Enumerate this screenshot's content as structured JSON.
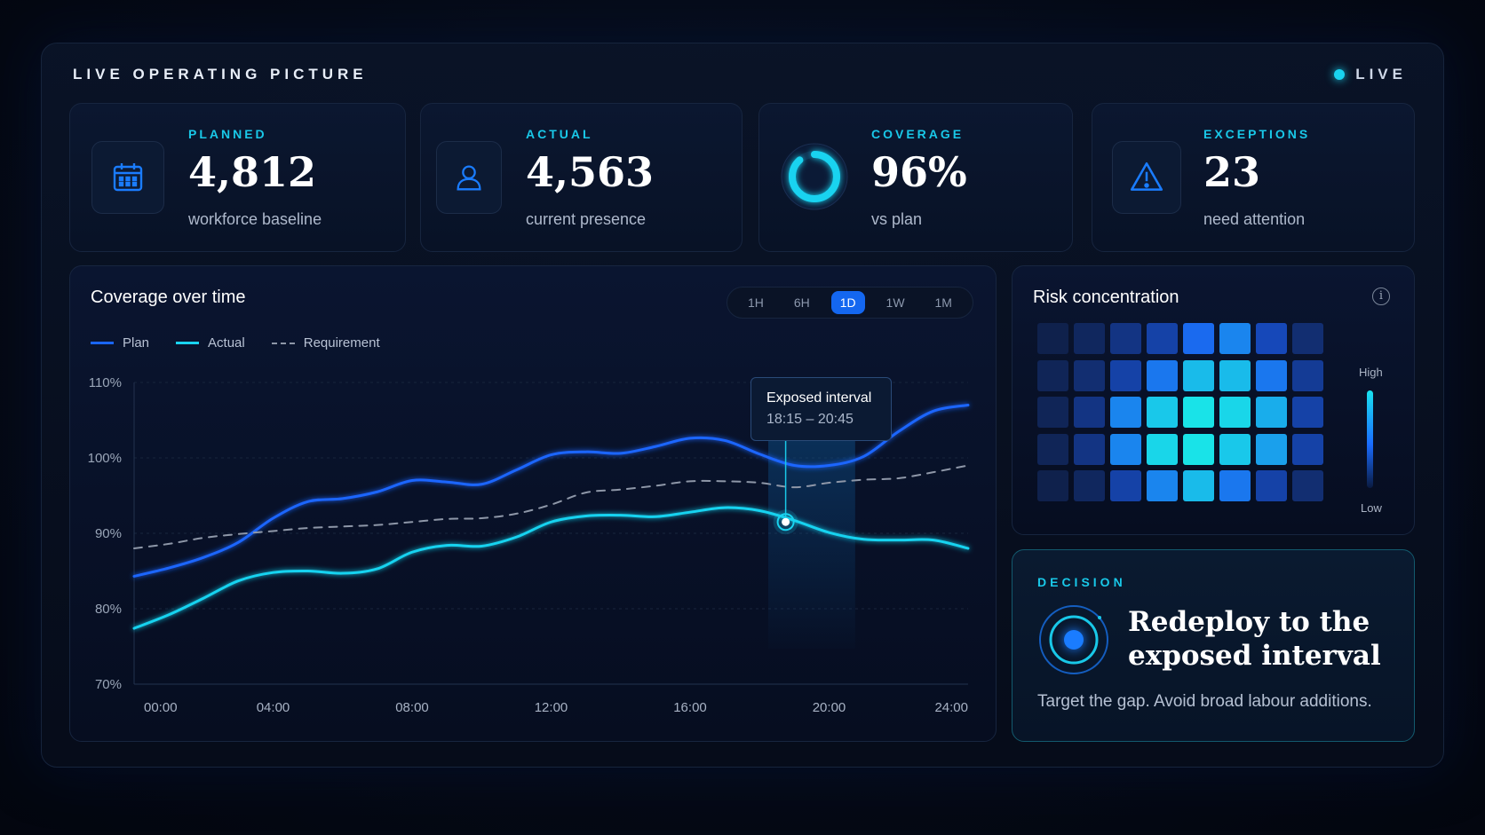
{
  "header": {
    "title": "LIVE OPERATING PICTURE",
    "live_label": "LIVE"
  },
  "colors": {
    "plan": "#1a66ff",
    "actual": "#19d3f0",
    "requirement": "#8e97a8",
    "accent": "#19c8e8",
    "active_tab": "#1467f0"
  },
  "kpis": [
    {
      "label": "PLANNED",
      "value": "4,812",
      "sub": "workforce baseline",
      "icon": "calendar-icon"
    },
    {
      "label": "ACTUAL",
      "value": "4,563",
      "sub": "current presence",
      "icon": "user-icon"
    },
    {
      "label": "COVERAGE",
      "value": "96%",
      "sub": "vs plan",
      "icon": "coverage-ring-icon",
      "progress": 0.96
    },
    {
      "label": "EXCEPTIONS",
      "value": "23",
      "sub": "need attention",
      "icon": "warning-icon"
    }
  ],
  "coverage_chart": {
    "title": "Coverage over time",
    "ranges": [
      "1H",
      "6H",
      "1D",
      "1W",
      "1M"
    ],
    "active_range": "1D",
    "legend": [
      "Plan",
      "Actual",
      "Requirement"
    ],
    "tooltip": {
      "title": "Exposed interval",
      "range": "18:15 – 20:45"
    }
  },
  "chart_data": {
    "type": "line",
    "x": [
      "00:00",
      "01:00",
      "02:00",
      "03:00",
      "04:00",
      "05:00",
      "06:00",
      "07:00",
      "08:00",
      "09:00",
      "10:00",
      "11:00",
      "12:00",
      "13:00",
      "14:00",
      "15:00",
      "16:00",
      "17:00",
      "18:00",
      "19:00",
      "20:00",
      "21:00",
      "22:00",
      "23:00",
      "24:00"
    ],
    "x_ticks": [
      "00:00",
      "04:00",
      "08:00",
      "12:00",
      "16:00",
      "20:00",
      "24:00"
    ],
    "y_ticks": [
      "70%",
      "80%",
      "90%",
      "100%",
      "110%"
    ],
    "ylim": [
      70,
      110
    ],
    "series": [
      {
        "name": "Plan",
        "style": "solid",
        "values": [
          84.3,
          85.4,
          86.8,
          88.8,
          92.0,
          94.2,
          94.6,
          95.5,
          97.0,
          96.8,
          96.5,
          98.4,
          100.4,
          100.8,
          100.6,
          101.5,
          102.6,
          102.3,
          100.5,
          99.0,
          99.0,
          100.2,
          103.5,
          106.2,
          107.0
        ]
      },
      {
        "name": "Actual",
        "style": "solid",
        "values": [
          77.4,
          79.2,
          81.4,
          83.7,
          84.8,
          85.0,
          84.7,
          85.3,
          87.5,
          88.4,
          88.3,
          89.5,
          91.5,
          92.3,
          92.4,
          92.2,
          92.8,
          93.4,
          93.0,
          91.7,
          90.1,
          89.2,
          89.1,
          89.1,
          88.0
        ]
      },
      {
        "name": "Requirement",
        "style": "dashed",
        "values": [
          88.0,
          88.6,
          89.4,
          89.9,
          90.3,
          90.7,
          90.9,
          91.1,
          91.5,
          91.9,
          92.0,
          92.6,
          93.8,
          95.4,
          95.8,
          96.3,
          96.9,
          96.9,
          96.7,
          96.1,
          96.7,
          97.1,
          97.3,
          98.1,
          99.0
        ]
      }
    ],
    "highlight": {
      "from": "18:15",
      "to": "20:45"
    },
    "marker": {
      "x": "18:45",
      "y": 91.5
    },
    "grid": true
  },
  "risk": {
    "title": "Risk concentration",
    "high_label": "High",
    "low_label": "Low",
    "grid": [
      [
        0.05,
        0.1,
        0.2,
        0.3,
        0.55,
        0.65,
        0.35,
        0.15
      ],
      [
        0.08,
        0.15,
        0.3,
        0.6,
        0.85,
        0.85,
        0.6,
        0.25
      ],
      [
        0.08,
        0.2,
        0.65,
        0.9,
        1.0,
        0.95,
        0.8,
        0.3
      ],
      [
        0.08,
        0.2,
        0.65,
        0.95,
        1.0,
        0.9,
        0.75,
        0.3
      ],
      [
        0.05,
        0.1,
        0.3,
        0.65,
        0.85,
        0.6,
        0.3,
        0.15
      ]
    ]
  },
  "decision": {
    "label": "DECISION",
    "headline": "Redeploy to the exposed interval",
    "subtext": "Target the gap. Avoid broad labour additions."
  }
}
